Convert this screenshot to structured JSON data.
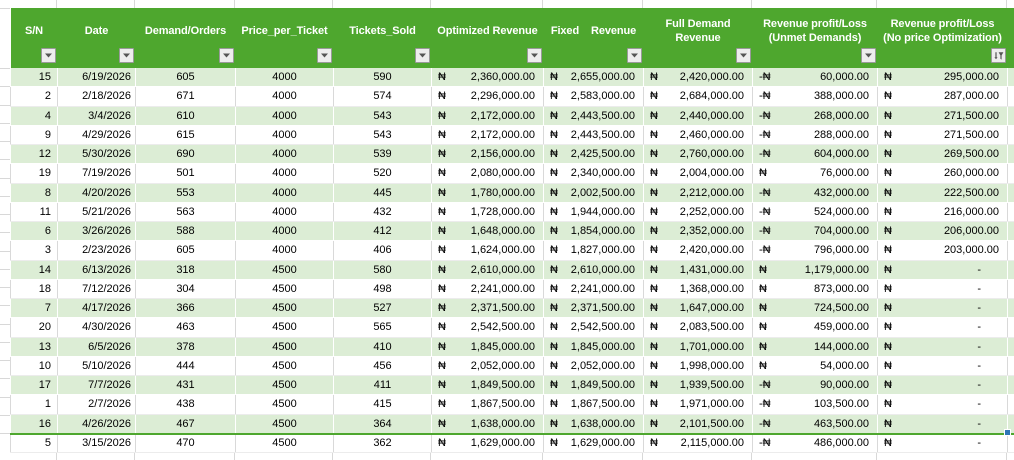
{
  "colors": {
    "header_green": "#4EA72E",
    "band_green": "#DCEDD5",
    "gridline_gray": "#D9D9D9",
    "fill_handle_blue": "#2E75B6",
    "header_text": "#FFFFFF"
  },
  "icons": {
    "filter_dropdown": "chevron-down-icon",
    "sorted_filter": "funnel-sort-descending-icon",
    "fill_handle": "selection-fill-handle"
  },
  "table": {
    "columns": [
      {
        "id": "sn",
        "label": "S/N",
        "label2": "",
        "filter": "dropdown"
      },
      {
        "id": "date",
        "label": "Date",
        "label2": "",
        "filter": "dropdown"
      },
      {
        "id": "demand",
        "label": "Demand/Orders",
        "label2": "",
        "filter": "dropdown"
      },
      {
        "id": "price",
        "label": "Price_per_Ticket",
        "label2": "",
        "filter": "dropdown"
      },
      {
        "id": "sold",
        "label": "Tickets_Sold",
        "label2": "",
        "filter": "dropdown"
      },
      {
        "id": "optimized",
        "label": "Optimized Revenue",
        "label2": "",
        "filter": "dropdown"
      },
      {
        "id": "fixed",
        "label": "Fixed Revenue",
        "label2": "",
        "filter": "dropdown"
      },
      {
        "id": "full",
        "label": "Full Demand",
        "label2": "Revenue",
        "filter": "dropdown"
      },
      {
        "id": "unmet",
        "label": "Revenue profit/Loss",
        "label2": "(Unmet Demands)",
        "filter": "dropdown"
      },
      {
        "id": "noopt",
        "label": "Revenue profit/Loss",
        "label2": "(No price Optimization)",
        "filter": "sort-desc"
      }
    ],
    "rows": [
      {
        "sn": "15",
        "date": "6/19/2026",
        "demand": "605",
        "price": "4000",
        "sold": "590",
        "opt": [
          "₦",
          "2,360,000.00"
        ],
        "fix": [
          "₦",
          "2,655,000.00"
        ],
        "full": [
          "₦",
          "2,420,000.00"
        ],
        "unmet": [
          "-₦",
          "60,000.00"
        ],
        "noopt": [
          "₦",
          "295,000.00"
        ]
      },
      {
        "sn": "2",
        "date": "2/18/2026",
        "demand": "671",
        "price": "4000",
        "sold": "574",
        "opt": [
          "₦",
          "2,296,000.00"
        ],
        "fix": [
          "₦",
          "2,583,000.00"
        ],
        "full": [
          "₦",
          "2,684,000.00"
        ],
        "unmet": [
          "-₦",
          "388,000.00"
        ],
        "noopt": [
          "₦",
          "287,000.00"
        ]
      },
      {
        "sn": "4",
        "date": "3/4/2026",
        "demand": "610",
        "price": "4000",
        "sold": "543",
        "opt": [
          "₦",
          "2,172,000.00"
        ],
        "fix": [
          "₦",
          "2,443,500.00"
        ],
        "full": [
          "₦",
          "2,440,000.00"
        ],
        "unmet": [
          "-₦",
          "268,000.00"
        ],
        "noopt": [
          "₦",
          "271,500.00"
        ]
      },
      {
        "sn": "9",
        "date": "4/29/2026",
        "demand": "615",
        "price": "4000",
        "sold": "543",
        "opt": [
          "₦",
          "2,172,000.00"
        ],
        "fix": [
          "₦",
          "2,443,500.00"
        ],
        "full": [
          "₦",
          "2,460,000.00"
        ],
        "unmet": [
          "-₦",
          "288,000.00"
        ],
        "noopt": [
          "₦",
          "271,500.00"
        ]
      },
      {
        "sn": "12",
        "date": "5/30/2026",
        "demand": "690",
        "price": "4000",
        "sold": "539",
        "opt": [
          "₦",
          "2,156,000.00"
        ],
        "fix": [
          "₦",
          "2,425,500.00"
        ],
        "full": [
          "₦",
          "2,760,000.00"
        ],
        "unmet": [
          "-₦",
          "604,000.00"
        ],
        "noopt": [
          "₦",
          "269,500.00"
        ]
      },
      {
        "sn": "19",
        "date": "7/19/2026",
        "demand": "501",
        "price": "4000",
        "sold": "520",
        "opt": [
          "₦",
          "2,080,000.00"
        ],
        "fix": [
          "₦",
          "2,340,000.00"
        ],
        "full": [
          "₦",
          "2,004,000.00"
        ],
        "unmet": [
          "₦",
          "76,000.00"
        ],
        "noopt": [
          "₦",
          "260,000.00"
        ]
      },
      {
        "sn": "8",
        "date": "4/20/2026",
        "demand": "553",
        "price": "4000",
        "sold": "445",
        "opt": [
          "₦",
          "1,780,000.00"
        ],
        "fix": [
          "₦",
          "2,002,500.00"
        ],
        "full": [
          "₦",
          "2,212,000.00"
        ],
        "unmet": [
          "-₦",
          "432,000.00"
        ],
        "noopt": [
          "₦",
          "222,500.00"
        ]
      },
      {
        "sn": "11",
        "date": "5/21/2026",
        "demand": "563",
        "price": "4000",
        "sold": "432",
        "opt": [
          "₦",
          "1,728,000.00"
        ],
        "fix": [
          "₦",
          "1,944,000.00"
        ],
        "full": [
          "₦",
          "2,252,000.00"
        ],
        "unmet": [
          "-₦",
          "524,000.00"
        ],
        "noopt": [
          "₦",
          "216,000.00"
        ]
      },
      {
        "sn": "6",
        "date": "3/26/2026",
        "demand": "588",
        "price": "4000",
        "sold": "412",
        "opt": [
          "₦",
          "1,648,000.00"
        ],
        "fix": [
          "₦",
          "1,854,000.00"
        ],
        "full": [
          "₦",
          "2,352,000.00"
        ],
        "unmet": [
          "-₦",
          "704,000.00"
        ],
        "noopt": [
          "₦",
          "206,000.00"
        ]
      },
      {
        "sn": "3",
        "date": "2/23/2026",
        "demand": "605",
        "price": "4000",
        "sold": "406",
        "opt": [
          "₦",
          "1,624,000.00"
        ],
        "fix": [
          "₦",
          "1,827,000.00"
        ],
        "full": [
          "₦",
          "2,420,000.00"
        ],
        "unmet": [
          "-₦",
          "796,000.00"
        ],
        "noopt": [
          "₦",
          "203,000.00"
        ]
      },
      {
        "sn": "14",
        "date": "6/13/2026",
        "demand": "318",
        "price": "4500",
        "sold": "580",
        "opt": [
          "₦",
          "2,610,000.00"
        ],
        "fix": [
          "₦",
          "2,610,000.00"
        ],
        "full": [
          "₦",
          "1,431,000.00"
        ],
        "unmet": [
          "₦",
          "1,179,000.00"
        ],
        "noopt": [
          "₦",
          "-"
        ]
      },
      {
        "sn": "18",
        "date": "7/12/2026",
        "demand": "304",
        "price": "4500",
        "sold": "498",
        "opt": [
          "₦",
          "2,241,000.00"
        ],
        "fix": [
          "₦",
          "2,241,000.00"
        ],
        "full": [
          "₦",
          "1,368,000.00"
        ],
        "unmet": [
          "₦",
          "873,000.00"
        ],
        "noopt": [
          "₦",
          "-"
        ]
      },
      {
        "sn": "7",
        "date": "4/17/2026",
        "demand": "366",
        "price": "4500",
        "sold": "527",
        "opt": [
          "₦",
          "2,371,500.00"
        ],
        "fix": [
          "₦",
          "2,371,500.00"
        ],
        "full": [
          "₦",
          "1,647,000.00"
        ],
        "unmet": [
          "₦",
          "724,500.00"
        ],
        "noopt": [
          "₦",
          "-"
        ]
      },
      {
        "sn": "20",
        "date": "4/30/2026",
        "demand": "463",
        "price": "4500",
        "sold": "565",
        "opt": [
          "₦",
          "2,542,500.00"
        ],
        "fix": [
          "₦",
          "2,542,500.00"
        ],
        "full": [
          "₦",
          "2,083,500.00"
        ],
        "unmet": [
          "₦",
          "459,000.00"
        ],
        "noopt": [
          "₦",
          "-"
        ]
      },
      {
        "sn": "13",
        "date": "6/5/2026",
        "demand": "378",
        "price": "4500",
        "sold": "410",
        "opt": [
          "₦",
          "1,845,000.00"
        ],
        "fix": [
          "₦",
          "1,845,000.00"
        ],
        "full": [
          "₦",
          "1,701,000.00"
        ],
        "unmet": [
          "₦",
          "144,000.00"
        ],
        "noopt": [
          "₦",
          "-"
        ]
      },
      {
        "sn": "10",
        "date": "5/10/2026",
        "demand": "444",
        "price": "4500",
        "sold": "456",
        "opt": [
          "₦",
          "2,052,000.00"
        ],
        "fix": [
          "₦",
          "2,052,000.00"
        ],
        "full": [
          "₦",
          "1,998,000.00"
        ],
        "unmet": [
          "₦",
          "54,000.00"
        ],
        "noopt": [
          "₦",
          "-"
        ]
      },
      {
        "sn": "17",
        "date": "7/7/2026",
        "demand": "431",
        "price": "4500",
        "sold": "411",
        "opt": [
          "₦",
          "1,849,500.00"
        ],
        "fix": [
          "₦",
          "1,849,500.00"
        ],
        "full": [
          "₦",
          "1,939,500.00"
        ],
        "unmet": [
          "-₦",
          "90,000.00"
        ],
        "noopt": [
          "₦",
          "-"
        ]
      },
      {
        "sn": "1",
        "date": "2/7/2026",
        "demand": "438",
        "price": "4500",
        "sold": "415",
        "opt": [
          "₦",
          "1,867,500.00"
        ],
        "fix": [
          "₦",
          "1,867,500.00"
        ],
        "full": [
          "₦",
          "1,971,000.00"
        ],
        "unmet": [
          "-₦",
          "103,500.00"
        ],
        "noopt": [
          "₦",
          "-"
        ]
      },
      {
        "sn": "16",
        "date": "4/26/2026",
        "demand": "467",
        "price": "4500",
        "sold": "364",
        "opt": [
          "₦",
          "1,638,000.00"
        ],
        "fix": [
          "₦",
          "1,638,000.00"
        ],
        "full": [
          "₦",
          "2,101,500.00"
        ],
        "unmet": [
          "-₦",
          "463,500.00"
        ],
        "noopt": [
          "₦",
          "-"
        ]
      },
      {
        "sn": "5",
        "date": "3/15/2026",
        "demand": "470",
        "price": "4500",
        "sold": "362",
        "opt": [
          "₦",
          "1,629,000.00"
        ],
        "fix": [
          "₦",
          "1,629,000.00"
        ],
        "full": [
          "₦",
          "2,115,000.00"
        ],
        "unmet": [
          "-₦",
          "486,000.00"
        ],
        "noopt": [
          "₦",
          "-"
        ]
      }
    ]
  }
}
